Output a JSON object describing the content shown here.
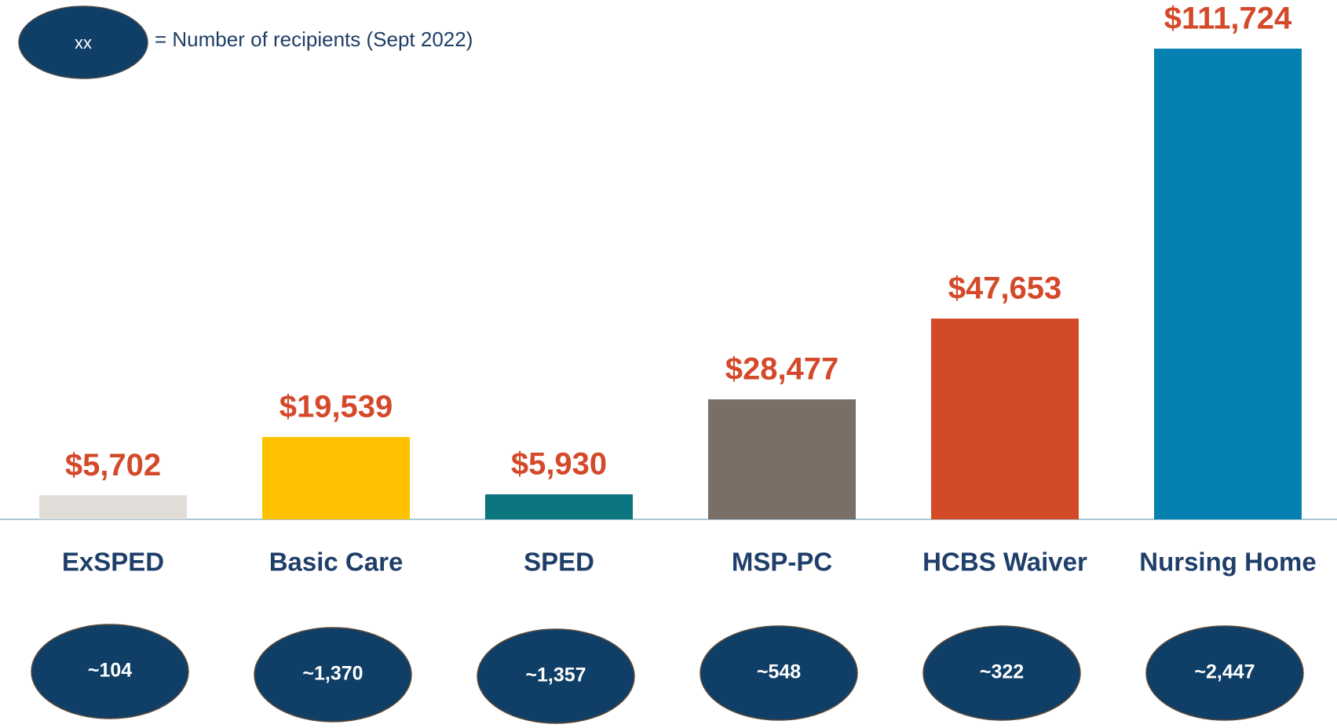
{
  "chart_data": {
    "type": "bar",
    "legend": {
      "symbol": "xx",
      "text": "= Number of recipients (Sept 2022)"
    },
    "categories": [
      "ExSPED",
      "Basic Care",
      "SPED",
      "MSP-PC",
      "HCBS Waiver",
      "Nursing Home"
    ],
    "values": [
      5702,
      19539,
      5930,
      28477,
      47653,
      111724
    ],
    "value_labels": [
      "$5,702",
      "$19,539",
      "$5,930",
      "$28,477",
      "$47,653",
      "$111,724"
    ],
    "colors": [
      "#e0ddd8",
      "#ffc000",
      "#0b7580",
      "#796f66",
      "#d24a26",
      "#0580b0"
    ],
    "recipients": [
      "~104",
      "~1,370",
      "~1,357",
      "~548",
      "~322",
      "~2,447"
    ]
  }
}
